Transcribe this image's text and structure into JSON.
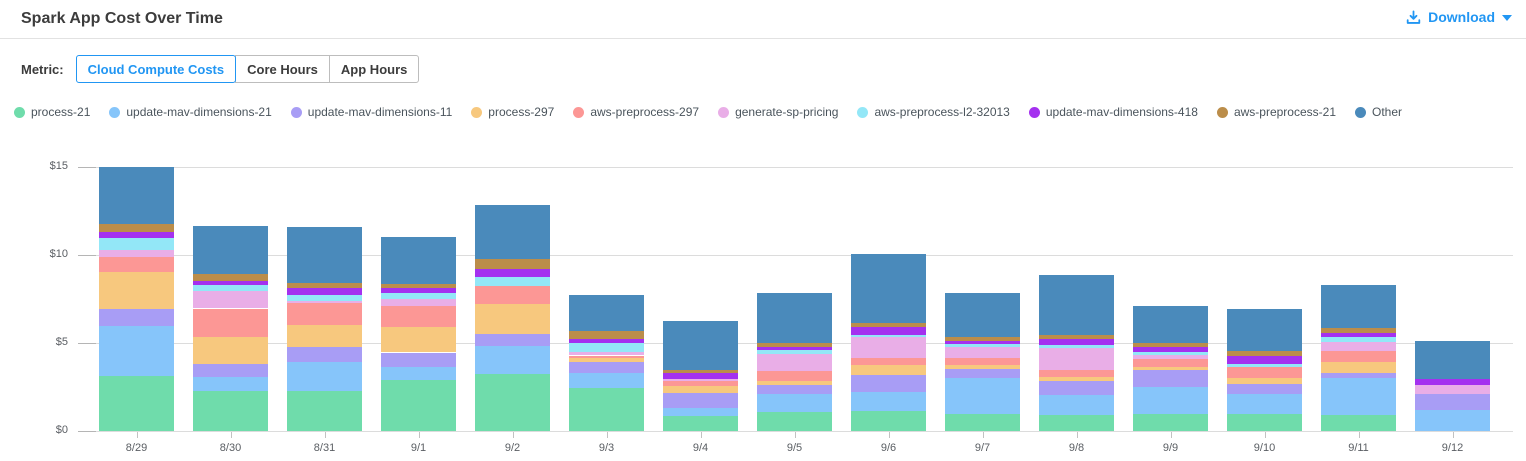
{
  "header": {
    "title": "Spark App Cost Over Time",
    "download": {
      "label": "Download",
      "icon": "download-icon",
      "caret_icon": "caret-down-icon"
    }
  },
  "metric": {
    "label": "Metric:",
    "options": [
      {
        "label": "Cloud Compute Costs",
        "active": true
      },
      {
        "label": "Core Hours",
        "active": false
      },
      {
        "label": "App Hours",
        "active": false
      }
    ]
  },
  "colors": {
    "accent": "#2196f3",
    "grid": "#dcdcdc",
    "axis_text": "#5a5e63",
    "title_text": "#3c3c3c",
    "legend_text": "#4a545c",
    "divider": "#e2e2e2"
  },
  "chart_data": {
    "type": "bar",
    "stacked": true,
    "title": "Spark App Cost Over Time",
    "xlabel": "",
    "ylabel": "",
    "unit": "$",
    "ylim": [
      0,
      15
    ],
    "grid": true,
    "legend_position": "top",
    "y_ticks": [
      {
        "label": "$0",
        "value": 0
      },
      {
        "label": "$5",
        "value": 5
      },
      {
        "label": "$10",
        "value": 10
      },
      {
        "label": "$15",
        "value": 15
      }
    ],
    "categories": [
      "8/29",
      "8/30",
      "8/31",
      "9/1",
      "9/2",
      "9/3",
      "9/4",
      "9/5",
      "9/6",
      "9/7",
      "9/8",
      "9/9",
      "9/10",
      "9/11",
      "9/12"
    ],
    "series": [
      {
        "name": "process-21",
        "color": "#6fdcab",
        "values": [
          3.14,
          2.27,
          2.26,
          2.88,
          3.26,
          2.46,
          0.85,
          1.1,
          1.13,
          0.95,
          0.91,
          0.98,
          0.98,
          0.91,
          0
        ]
      },
      {
        "name": "update-mav-dimensions-21",
        "color": "#86c5fa",
        "values": [
          2.85,
          0.79,
          1.67,
          0.76,
          1.57,
          0.85,
          0.47,
          1.02,
          1.1,
          2.04,
          1.13,
          1.51,
          1.1,
          2.08,
          1.17
        ]
      },
      {
        "name": "update-mav-dimensions-11",
        "color": "#a89df5",
        "values": [
          0.95,
          0.72,
          0.83,
          0.82,
          0.7,
          0.62,
          0.85,
          0.49,
          0.98,
          0.51,
          0.79,
          0.95,
          0.57,
          0.32,
          0.95
        ]
      },
      {
        "name": "process-297",
        "color": "#f7c87e",
        "values": [
          2.09,
          1.55,
          1.25,
          1.45,
          1.66,
          0.19,
          0.38,
          0.23,
          0.53,
          0.25,
          0.23,
          0.19,
          0.34,
          0.62,
          0
        ]
      },
      {
        "name": "aws-preprocess-297",
        "color": "#fc9795",
        "values": [
          0.86,
          1.63,
          1.27,
          1.19,
          1.04,
          0.17,
          0.28,
          0.57,
          0.42,
          0.38,
          0.38,
          0.47,
          0.64,
          0.61,
          0
        ]
      },
      {
        "name": "generate-sp-pricing",
        "color": "#e9aee7",
        "values": [
          0.38,
          1.02,
          0.09,
          0.38,
          0,
          0.21,
          0.15,
          0.98,
          1.17,
          0.64,
          1.28,
          0.21,
          0,
          0.53,
          0.49
        ]
      },
      {
        "name": "aws-preprocess-l2-32013",
        "color": "#93e7f7",
        "values": [
          0.67,
          0.34,
          0.34,
          0.38,
          0.51,
          0.51,
          0,
          0.19,
          0.15,
          0.19,
          0.15,
          0.19,
          0.19,
          0.26,
          0
        ]
      },
      {
        "name": "update-mav-dimensions-418",
        "color": "#a431ef",
        "values": [
          0.38,
          0.23,
          0.42,
          0.25,
          0.44,
          0.19,
          0.32,
          0.21,
          0.42,
          0.15,
          0.38,
          0.26,
          0.44,
          0.25,
          0.32
        ]
      },
      {
        "name": "aws-preprocess-21",
        "color": "#bb8d4a",
        "values": [
          0.44,
          0.38,
          0.28,
          0.26,
          0.57,
          0.47,
          0.19,
          0.23,
          0.25,
          0.23,
          0.19,
          0.25,
          0.28,
          0.25,
          0
        ]
      },
      {
        "name": "Other",
        "color": "#4a8abb",
        "values": [
          3.25,
          2.7,
          3.17,
          2.64,
          3.08,
          2.08,
          2.74,
          2.84,
          3.88,
          2.52,
          3.41,
          2.08,
          2.42,
          2.44,
          2.18
        ]
      }
    ]
  }
}
